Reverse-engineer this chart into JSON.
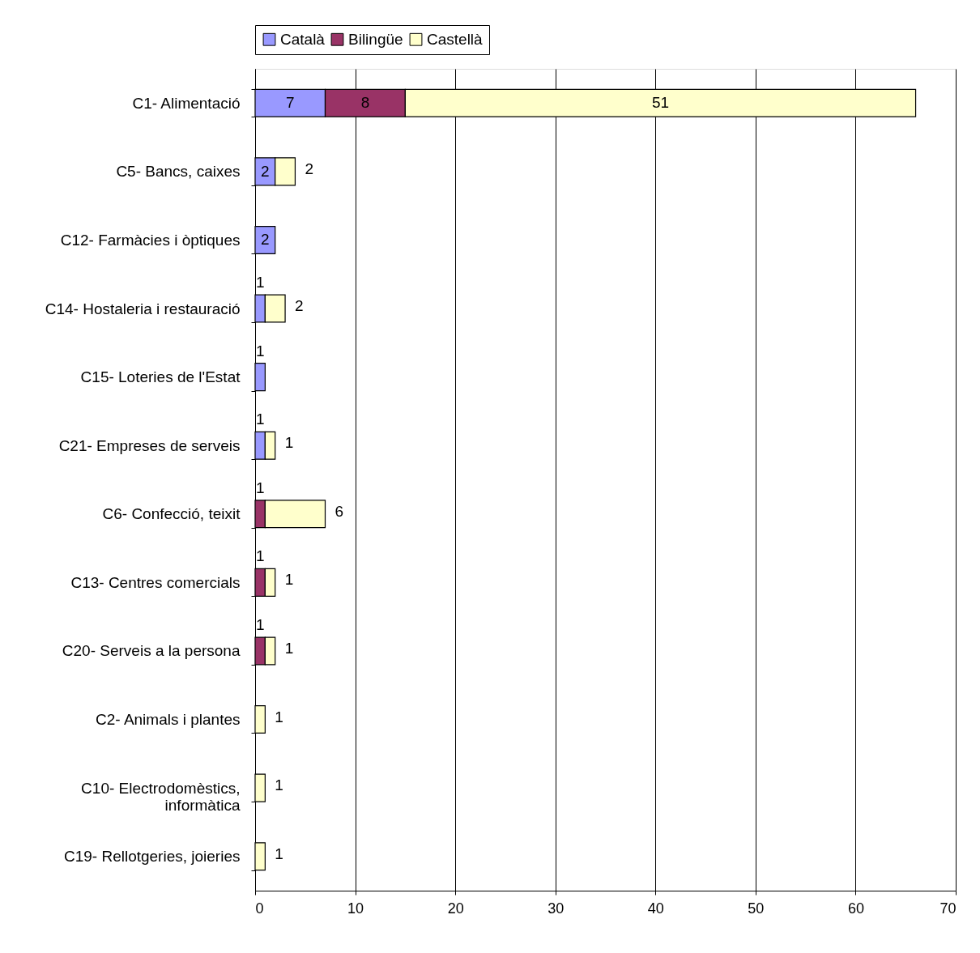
{
  "chart_data": {
    "type": "bar",
    "orientation": "horizontal",
    "stacked": true,
    "data_labels": true,
    "categories": [
      "C1- Alimentació",
      "C5- Bancs, caixes",
      "C12- Farmàcies i òptiques",
      "C14- Hostaleria i restauració",
      "C15- Loteries de l'Estat",
      "C21- Empreses de serveis",
      "C6- Confecció, teixit",
      "C13- Centres comercials",
      "C20- Serveis a la persona",
      "C2- Animals i plantes",
      "C10- Electrodomèstics,\ninformàtica",
      "C19- Rellotgeries, joieries"
    ],
    "series": [
      {
        "name": "Català",
        "color": "#9999ff",
        "values": [
          7,
          2,
          2,
          1,
          1,
          1,
          null,
          null,
          null,
          null,
          null,
          null
        ]
      },
      {
        "name": "Bilingüe",
        "color": "#993366",
        "values": [
          8,
          null,
          null,
          null,
          null,
          null,
          1,
          1,
          1,
          null,
          null,
          null
        ]
      },
      {
        "name": "Castellà",
        "color": "#ffffcc",
        "values": [
          51,
          2,
          null,
          2,
          null,
          1,
          6,
          1,
          1,
          1,
          1,
          1
        ]
      }
    ],
    "xlim": [
      0,
      70
    ],
    "xticks": [
      0,
      10,
      20,
      30,
      40,
      50,
      60,
      70
    ],
    "grid": "x",
    "legend": "top"
  }
}
